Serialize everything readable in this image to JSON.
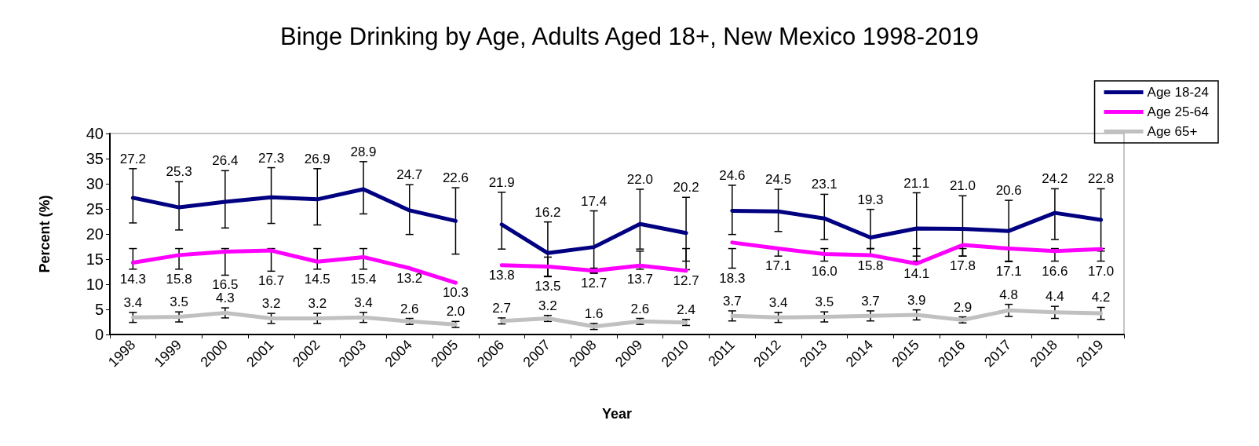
{
  "chart_data": {
    "type": "line",
    "title": "Binge Drinking by Age, Adults Aged 18+, New Mexico 1998-2019",
    "xlabel": "Year",
    "ylabel": "Percent (%)",
    "categories": [
      "1998",
      "1999",
      "2000",
      "2001",
      "2002",
      "2003",
      "2004",
      "2005",
      "2006",
      "2007",
      "2008",
      "2009",
      "2010",
      "2011",
      "2012",
      "2013",
      "2014",
      "2015",
      "2016",
      "2017",
      "2018",
      "2019"
    ],
    "ylim": [
      0,
      40
    ],
    "yticks": [
      0,
      5,
      10,
      15,
      20,
      25,
      30,
      35,
      40
    ],
    "grid": false,
    "legend": "top right",
    "marker": "none",
    "line_style": "solid",
    "series": [
      {
        "name": "Age 18-24",
        "color": "#000080",
        "values": [
          27.2,
          25.3,
          26.4,
          27.3,
          26.9,
          28.9,
          24.7,
          22.6,
          null,
          null,
          null,
          null,
          null,
          null,
          null,
          null,
          null,
          null,
          null,
          null,
          null,
          null
        ],
        "value_labels": [
          "27.2",
          "25.3",
          "26.4",
          "27.3",
          "26.9",
          "28.9",
          "24.7",
          "22.6",
          null,
          null,
          null,
          null,
          null,
          null,
          null,
          null,
          null,
          null,
          null,
          null,
          null,
          null
        ],
        "errors": [
          [
            22.2,
            33.0
          ],
          [
            20.8,
            30.4
          ],
          [
            21.2,
            32.6
          ],
          [
            22.1,
            33.2
          ],
          [
            21.8,
            33.0
          ],
          [
            24.0,
            34.4
          ],
          [
            19.9,
            29.8
          ],
          [
            16.0,
            29.2
          ],
          null,
          null,
          null,
          null,
          null,
          null,
          null,
          null,
          null,
          null,
          null,
          null,
          null,
          null
        ]
      },
      {
        "color": "#000080",
        "values": [
          null,
          null,
          null,
          null,
          null,
          null,
          null,
          null,
          21.9,
          16.2,
          17.4,
          22.0,
          20.2,
          null,
          null,
          null,
          null,
          null,
          null,
          null,
          null,
          null
        ],
        "value_labels": [
          null,
          null,
          null,
          null,
          null,
          null,
          null,
          null,
          "21.9",
          "16.2",
          "17.4",
          "22.0",
          "20.2",
          null,
          null,
          null,
          null,
          null,
          null,
          null,
          null,
          null
        ],
        "errors": [
          null,
          null,
          null,
          null,
          null,
          null,
          null,
          null,
          [
            17.0,
            28.3
          ],
          [
            11.5,
            22.4
          ],
          [
            12.2,
            24.6
          ],
          [
            17.0,
            28.9
          ],
          [
            14.6,
            27.3
          ],
          null,
          null,
          null,
          null,
          null,
          null,
          null,
          null,
          null
        ]
      },
      {
        "color": "#000080",
        "values": [
          null,
          null,
          null,
          null,
          null,
          null,
          null,
          null,
          null,
          null,
          null,
          null,
          null,
          24.6,
          24.5,
          23.1,
          19.3,
          21.1,
          21.0,
          20.6,
          24.2,
          22.8
        ],
        "value_labels": [
          null,
          null,
          null,
          null,
          null,
          null,
          null,
          null,
          null,
          null,
          null,
          null,
          null,
          "24.6",
          "24.5",
          "23.1",
          "19.3",
          "21.1",
          "21.0",
          "20.6",
          "24.2",
          "22.8"
        ],
        "errors": [
          null,
          null,
          null,
          null,
          null,
          null,
          null,
          null,
          null,
          null,
          null,
          null,
          null,
          [
            19.9,
            29.7
          ],
          [
            20.5,
            28.9
          ],
          [
            18.9,
            27.9
          ],
          [
            17.1,
            24.9
          ],
          [
            15.6,
            28.2
          ],
          [
            15.6,
            27.6
          ],
          [
            14.5,
            26.7
          ],
          [
            18.9,
            29.0
          ],
          [
            16.6,
            29.0
          ]
        ]
      },
      {
        "name": "Age 25-64",
        "color": "#ff00ff",
        "values": [
          14.3,
          15.8,
          16.5,
          16.7,
          14.5,
          15.4,
          13.2,
          10.3,
          null,
          null,
          null,
          null,
          null,
          null,
          null,
          null,
          null,
          null,
          null,
          null,
          null,
          null
        ],
        "value_labels": [
          "14.3",
          "15.8",
          "16.5",
          "16.7",
          "14.5",
          "15.4",
          "13.2",
          "10.3",
          null,
          null,
          null,
          null,
          null,
          null,
          null,
          null,
          null,
          null,
          null,
          null,
          null,
          null
        ],
        "errors": [
          [
            13.0,
            17.1
          ],
          [
            13.0,
            17.1
          ],
          [
            11.8,
            17.1
          ],
          [
            12.6,
            17.1
          ],
          [
            13.0,
            17.1
          ],
          [
            13.0,
            17.1
          ],
          null,
          null,
          null,
          null,
          null,
          null,
          null,
          null,
          null,
          null,
          null,
          null,
          null,
          null,
          null,
          null
        ]
      },
      {
        "color": "#ff00ff",
        "values": [
          null,
          null,
          null,
          null,
          null,
          null,
          null,
          null,
          13.8,
          13.5,
          12.7,
          13.7,
          12.7,
          null,
          null,
          null,
          null,
          null,
          null,
          null,
          null,
          null
        ],
        "value_labels": [
          null,
          null,
          null,
          null,
          null,
          null,
          null,
          null,
          "13.8",
          "13.5",
          "12.7",
          "13.7",
          "12.7",
          null,
          null,
          null,
          null,
          null,
          null,
          null,
          null,
          null
        ],
        "errors": [
          null,
          null,
          null,
          null,
          null,
          null,
          null,
          null,
          null,
          [
            11.6,
            15.4
          ],
          [
            12.2,
            13.2
          ],
          [
            13.0,
            16.6
          ],
          [
            12.9,
            17.1
          ],
          null,
          null,
          null,
          null,
          null,
          null,
          null,
          null,
          null
        ]
      },
      {
        "color": "#ff00ff",
        "values": [
          null,
          null,
          null,
          null,
          null,
          null,
          null,
          null,
          null,
          null,
          null,
          null,
          null,
          18.3,
          17.1,
          16.0,
          15.8,
          14.1,
          17.8,
          17.1,
          16.6,
          17.0
        ],
        "value_labels": [
          null,
          null,
          null,
          null,
          null,
          null,
          null,
          null,
          null,
          null,
          null,
          null,
          null,
          "18.3",
          "17.1",
          "16.0",
          "15.8",
          "14.1",
          "17.8",
          "17.1",
          "16.6",
          "17.0"
        ],
        "errors": [
          null,
          null,
          null,
          null,
          null,
          null,
          null,
          null,
          null,
          null,
          null,
          null,
          null,
          [
            13.2,
            17.1
          ],
          [
            15.6,
            17.1
          ],
          [
            14.6,
            17.1
          ],
          [
            15.6,
            17.1
          ],
          [
            14.6,
            17.1
          ],
          [
            15.6,
            17.1
          ],
          [
            14.6,
            17.1
          ],
          [
            14.6,
            17.1
          ],
          [
            14.6,
            17.1
          ]
        ]
      },
      {
        "name": "Age 65+",
        "color": "#c0c0c0",
        "values": [
          3.4,
          3.5,
          4.3,
          3.2,
          3.2,
          3.4,
          2.6,
          2.0,
          null,
          null,
          null,
          null,
          null,
          null,
          null,
          null,
          null,
          null,
          null,
          null,
          null,
          null
        ],
        "value_labels": [
          "3.4",
          "3.5",
          "4.3",
          "3.2",
          "3.2",
          "3.4",
          "2.6",
          "2.0",
          null,
          null,
          null,
          null,
          null,
          null,
          null,
          null,
          null,
          null,
          null,
          null,
          null,
          null
        ],
        "errors": [
          1.0,
          1.0,
          1.0,
          1.0,
          1.0,
          1.0,
          0.6,
          0.6,
          null,
          null,
          null,
          null,
          null,
          null,
          null,
          null,
          null,
          null,
          null,
          null,
          null,
          null
        ]
      },
      {
        "color": "#c0c0c0",
        "values": [
          null,
          null,
          null,
          null,
          null,
          null,
          null,
          null,
          2.7,
          3.2,
          1.6,
          2.6,
          2.4,
          null,
          null,
          null,
          null,
          null,
          null,
          null,
          null,
          null
        ],
        "value_labels": [
          null,
          null,
          null,
          null,
          null,
          null,
          null,
          null,
          "2.7",
          "3.2",
          "1.6",
          "2.6",
          "2.4",
          null,
          null,
          null,
          null,
          null,
          null,
          null,
          null,
          null
        ],
        "errors": [
          null,
          null,
          null,
          null,
          null,
          null,
          null,
          null,
          0.6,
          0.6,
          0.6,
          0.6,
          0.6,
          null,
          null,
          null,
          null,
          null,
          null,
          null,
          null,
          null
        ]
      },
      {
        "color": "#c0c0c0",
        "values": [
          null,
          null,
          null,
          null,
          null,
          null,
          null,
          null,
          null,
          null,
          null,
          null,
          null,
          3.7,
          3.4,
          3.5,
          3.7,
          3.9,
          2.9,
          4.8,
          4.4,
          4.2
        ],
        "value_labels": [
          null,
          null,
          null,
          null,
          null,
          null,
          null,
          null,
          null,
          null,
          null,
          null,
          null,
          "3.7",
          "3.4",
          "3.5",
          "3.7",
          "3.9",
          "2.9",
          "4.8",
          "4.4",
          "4.2"
        ],
        "errors": [
          null,
          null,
          null,
          null,
          null,
          null,
          null,
          null,
          null,
          null,
          null,
          null,
          null,
          1.0,
          1.0,
          1.0,
          1.0,
          1.0,
          0.6,
          1.2,
          1.2,
          1.2
        ]
      }
    ]
  }
}
